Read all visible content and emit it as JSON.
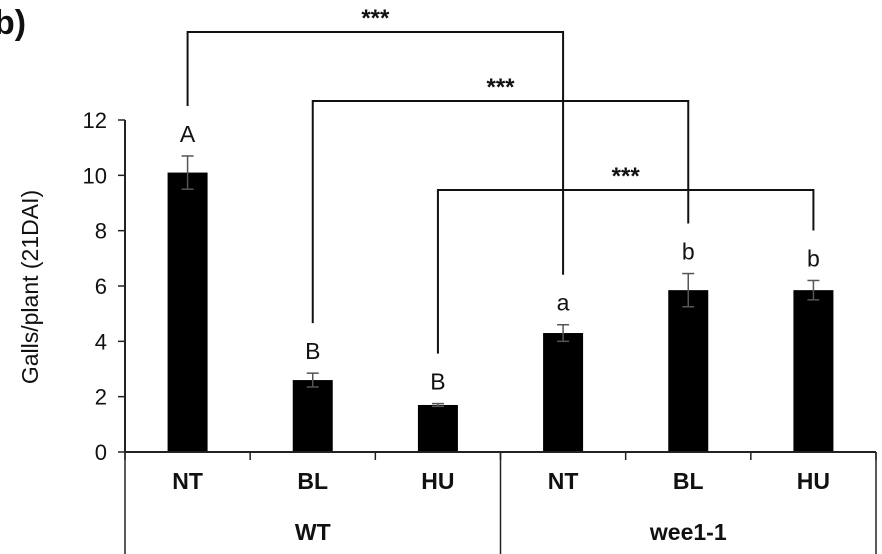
{
  "panel_label": "b)",
  "chart_data": {
    "type": "bar",
    "title": "",
    "ylabel": "Galls/plant (21DAI)",
    "ylim": [
      0,
      12
    ],
    "yticks": [
      0,
      2,
      4,
      6,
      8,
      10,
      12
    ],
    "categories": [
      "NT",
      "BL",
      "HU",
      "NT",
      "BL",
      "HU"
    ],
    "groups": [
      {
        "label": "WT",
        "categories": [
          0,
          1,
          2
        ]
      },
      {
        "label": "wee1-1",
        "categories": [
          3,
          4,
          5
        ]
      }
    ],
    "values": [
      10.1,
      2.6,
      1.7,
      4.3,
      5.85,
      5.85
    ],
    "errors": [
      0.6,
      0.25,
      0.05,
      0.3,
      0.6,
      0.35
    ],
    "letters": [
      "A",
      "B",
      "B",
      "a",
      "b",
      "b"
    ],
    "bar_color": "#000000",
    "significance": [
      {
        "from": 0,
        "to": 3,
        "label": "***"
      },
      {
        "from": 1,
        "to": 4,
        "label": "***"
      },
      {
        "from": 2,
        "to": 5,
        "label": "***"
      }
    ]
  }
}
